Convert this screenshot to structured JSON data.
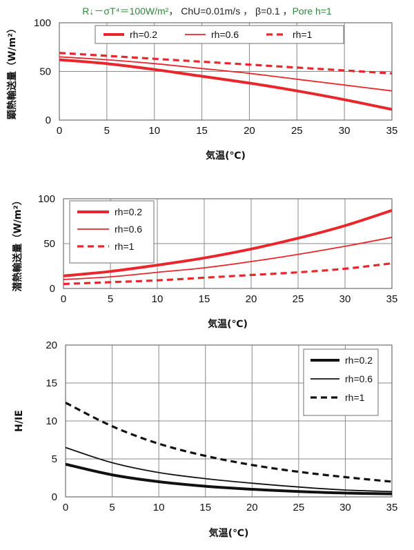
{
  "header": {
    "part1": "R↓－σT⁴＝100W/m²",
    "part2": "， ChU=0.01m/s ， β=0.1 ，",
    "part3": "Pore  h=1"
  },
  "chart_data": [
    {
      "type": "line",
      "ylabel": "顕熱輸送量（W/m²）",
      "xlabel": "気温(℃)",
      "xlim": [
        0,
        35
      ],
      "ylim": [
        0,
        100
      ],
      "xticks": [
        "0",
        "5",
        "10",
        "15",
        "20",
        "25",
        "30",
        "35"
      ],
      "yticks": [
        "0",
        "50",
        "100"
      ],
      "grid": true,
      "legend_position": "top",
      "color": "#e8262b",
      "series": [
        {
          "name": "rh=0.2",
          "style": "thick",
          "x": [
            0,
            5,
            10,
            15,
            20,
            25,
            30,
            35
          ],
          "values": [
            62,
            58,
            52,
            45,
            38,
            30,
            21,
            11
          ]
        },
        {
          "name": "rh=0.6",
          "style": "thin",
          "x": [
            0,
            5,
            10,
            15,
            20,
            25,
            30,
            35
          ],
          "values": [
            65,
            62,
            58,
            53,
            48,
            42,
            36,
            30
          ]
        },
        {
          "name": "rh=1",
          "style": "dashed",
          "x": [
            0,
            5,
            10,
            15,
            20,
            25,
            30,
            35
          ],
          "values": [
            69,
            66,
            63,
            60,
            57,
            54,
            51,
            48
          ]
        }
      ]
    },
    {
      "type": "line",
      "ylabel": "潜熱輸送量（W/m²）",
      "xlabel": "気温(℃)",
      "xlim": [
        0,
        35
      ],
      "ylim": [
        0,
        100
      ],
      "xticks": [
        "0",
        "5",
        "10",
        "15",
        "20",
        "25",
        "30",
        "35"
      ],
      "yticks": [
        "0",
        "50",
        "100"
      ],
      "grid": true,
      "legend_position": "top-left",
      "color": "#e8262b",
      "series": [
        {
          "name": "rh=0.2",
          "style": "thick",
          "x": [
            0,
            5,
            10,
            15,
            20,
            25,
            30,
            35
          ],
          "values": [
            14,
            19,
            26,
            34,
            44,
            56,
            70,
            87
          ]
        },
        {
          "name": "rh=0.6",
          "style": "thin",
          "x": [
            0,
            5,
            10,
            15,
            20,
            25,
            30,
            35
          ],
          "values": [
            10,
            13,
            18,
            23,
            30,
            38,
            47,
            57
          ]
        },
        {
          "name": "rh=1",
          "style": "dashed",
          "x": [
            0,
            5,
            10,
            15,
            20,
            25,
            30,
            35
          ],
          "values": [
            5,
            7,
            9,
            12,
            15,
            18,
            22,
            28
          ]
        }
      ]
    },
    {
      "type": "line",
      "ylabel": "H/IE",
      "xlabel": "気温(℃)",
      "xlim": [
        0,
        35
      ],
      "ylim": [
        0,
        20
      ],
      "xticks": [
        "0",
        "5",
        "10",
        "15",
        "20",
        "25",
        "30",
        "35"
      ],
      "yticks": [
        "0",
        "5",
        "10",
        "15",
        "20"
      ],
      "grid": true,
      "legend_position": "top-right",
      "color": "#111111",
      "series": [
        {
          "name": "rh=0.2",
          "style": "thick",
          "x": [
            0,
            5,
            10,
            15,
            20,
            25,
            30,
            35
          ],
          "values": [
            4.3,
            2.9,
            2.0,
            1.4,
            1.0,
            0.7,
            0.5,
            0.4
          ]
        },
        {
          "name": "rh=0.6",
          "style": "thin",
          "x": [
            0,
            5,
            10,
            15,
            20,
            25,
            30,
            35
          ],
          "values": [
            6.5,
            4.5,
            3.2,
            2.4,
            1.8,
            1.3,
            0.9,
            0.7
          ]
        },
        {
          "name": "rh=1",
          "style": "dashed",
          "x": [
            0,
            5,
            10,
            15,
            20,
            25,
            30,
            35
          ],
          "values": [
            12.4,
            9.3,
            7.0,
            5.4,
            4.2,
            3.3,
            2.6,
            2.0
          ]
        }
      ]
    }
  ]
}
